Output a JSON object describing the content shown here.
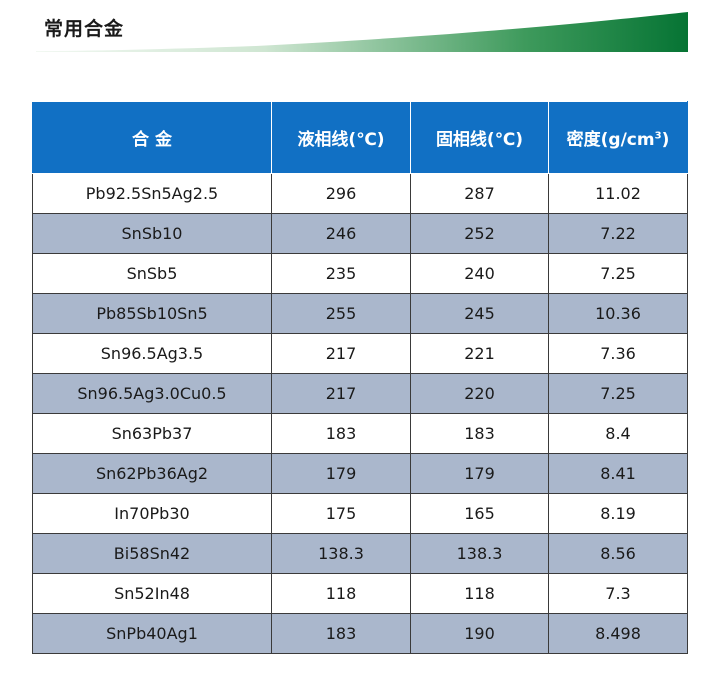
{
  "heading": "常用合金",
  "colors": {
    "header_bg": "#1170c4",
    "stripe": "#aab7cc",
    "rule_start": "#e8f4ea",
    "rule_end": "#0a7a3a"
  },
  "table": {
    "headers": {
      "alloy": "合 金",
      "liquidus": "液相线(℃)",
      "solidus": "固相线(℃)",
      "density_prefix": "密度(g/cm",
      "density_sup": "3",
      "density_suffix": ")"
    },
    "rows": [
      [
        "Pb92.5Sn5Ag2.5",
        "296",
        "287",
        "11.02"
      ],
      [
        "SnSb10",
        "246",
        "252",
        "7.22"
      ],
      [
        "SnSb5",
        "235",
        "240",
        "7.25"
      ],
      [
        "Pb85Sb10Sn5",
        "255",
        "245",
        "10.36"
      ],
      [
        "Sn96.5Ag3.5",
        "217",
        "221",
        "7.36"
      ],
      [
        "Sn96.5Ag3.0Cu0.5",
        "217",
        "220",
        "7.25"
      ],
      [
        "Sn63Pb37",
        "183",
        "183",
        "8.4"
      ],
      [
        "Sn62Pb36Ag2",
        "179",
        "179",
        "8.41"
      ],
      [
        "In70Pb30",
        "175",
        "165",
        "8.19"
      ],
      [
        "Bi58Sn42",
        "138.3",
        "138.3",
        "8.56"
      ],
      [
        "Sn52In48",
        "118",
        "118",
        "7.3"
      ],
      [
        "SnPb40Ag1",
        "183",
        "190",
        "8.498"
      ]
    ]
  }
}
